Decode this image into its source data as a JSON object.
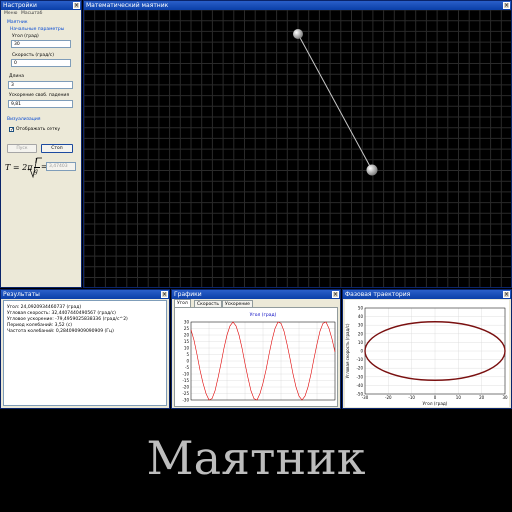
{
  "settings": {
    "title": "Настройки",
    "menu": [
      "Меню",
      "Масштаб"
    ],
    "group_pendulum": "Маятник",
    "group_initial": "Начальные параметры",
    "angle_label": "Угол (град)",
    "angle_value": "30",
    "speed_label": "Скорость (град/с)",
    "speed_value": "0",
    "length_label": "Длина",
    "length_value": "3",
    "gravity_label": "Ускорение своб. падения",
    "gravity_value": "9,81",
    "group_visual": "Визуализация",
    "grid_checkbox_label": "Отображать сетку",
    "grid_checked": true,
    "start_button": "Пуск",
    "stop_button": "Стоп",
    "formula_T": "T = 2π",
    "formula_l": "l",
    "formula_g": "g",
    "period_result": "3,47403"
  },
  "canvas": {
    "title": "Математический маятник",
    "grid_color": "#2a2a2a",
    "rod_color": "#c8c8c8"
  },
  "results": {
    "title": "Результаты",
    "lines": [
      "Угол: 24,0920934460737 (град)",
      "Угловая скорость: 32,4407440490567 (град/с)",
      "Угловое ускорение: -79,4959025838336 (град/с^2)",
      "Период колебаний: 3,52 (с)",
      "Частота колебаний: 0,284090909090909 (Гц)"
    ]
  },
  "graphs": {
    "title": "Графики",
    "tabs": [
      "Угол",
      "Скорость",
      "Ускорение"
    ],
    "active_tab": 0
  },
  "phase": {
    "title": "Фазовая траектория"
  },
  "chart_data": [
    {
      "type": "line",
      "title": "Угол (град)",
      "xlabel": "",
      "ylabel": "",
      "ylim": [
        -30,
        30
      ],
      "yticks": [
        30,
        25,
        20,
        15,
        10,
        5,
        0,
        -5,
        -10,
        -15,
        -20,
        -25,
        -30
      ],
      "grid": true,
      "series": [
        {
          "color": "#e00000",
          "x": [
            0,
            0.25,
            0.5,
            0.75,
            1,
            1.25,
            1.5,
            1.75,
            2,
            2.25,
            2.5,
            2.75,
            3,
            3.25,
            3.5,
            3.75,
            4,
            4.25,
            4.5,
            4.75,
            5,
            5.25,
            5.5,
            5.75,
            6,
            6.25,
            6.5,
            6.75,
            7,
            7.25,
            7.5,
            7.75,
            8,
            8.25,
            8.5,
            8.75,
            9,
            9.25,
            9.5,
            9.75,
            10,
            10.25,
            10.5,
            10.75,
            11,
            11.25,
            11.5,
            11.75,
            12
          ],
          "y": [
            24,
            16,
            5,
            -7,
            -17,
            -25,
            -30,
            -29,
            -23,
            -13,
            -2,
            10,
            20,
            27,
            30,
            27,
            20,
            10,
            -2,
            -13,
            -23,
            -29,
            -30,
            -25,
            -17,
            -7,
            5,
            16,
            25,
            30,
            29,
            23,
            13,
            2,
            -10,
            -20,
            -27,
            -30,
            -27,
            -20,
            -10,
            2,
            13,
            23,
            29,
            30,
            25,
            17,
            7
          ]
        }
      ]
    },
    {
      "type": "scatter",
      "title": "",
      "xlabel": "Угол (град)",
      "ylabel": "Угловая скорость (град/с)",
      "xlim": [
        -30,
        30
      ],
      "ylim": [
        -50,
        50
      ],
      "xticks": [
        -30,
        -20,
        -10,
        0,
        10,
        20,
        30
      ],
      "yticks": [
        50,
        40,
        30,
        20,
        10,
        0,
        -10,
        -20,
        -30,
        -40,
        -50
      ],
      "grid": true,
      "series": [
        {
          "color": "#7a1010",
          "shape": "ellipse",
          "x_amplitude": 30,
          "y_amplitude": 34
        }
      ]
    }
  ]
}
